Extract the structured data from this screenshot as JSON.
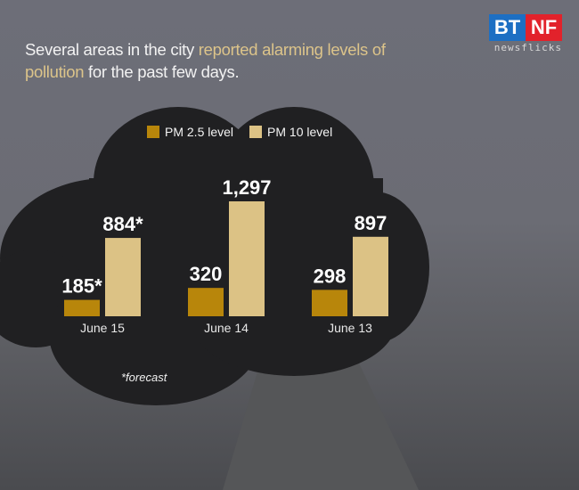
{
  "headline": {
    "part1": "Several areas in the city ",
    "highlight": "reported alarming levels of pollution",
    "part2": " for the past few days."
  },
  "logo": {
    "left": "BT",
    "right": "NF",
    "tagline": "newsflicks",
    "colors": {
      "left": "#1d6fc3",
      "right": "#e2222b"
    }
  },
  "footnote": "*forecast",
  "chart_data": {
    "type": "bar",
    "categories": [
      "June 15",
      "June 14",
      "June 13"
    ],
    "series": [
      {
        "name": "PM 2.5 level",
        "values": [
          185,
          320,
          298
        ],
        "labels": [
          "185*",
          "320",
          "298"
        ],
        "color": "#b8860b"
      },
      {
        "name": "PM 10 level",
        "values": [
          884,
          1297,
          897
        ],
        "labels": [
          "884*",
          "1,297",
          "897"
        ],
        "color": "#dcc285"
      }
    ],
    "legend_position": "top",
    "grid": false,
    "ylim": [
      0,
      1300
    ]
  }
}
